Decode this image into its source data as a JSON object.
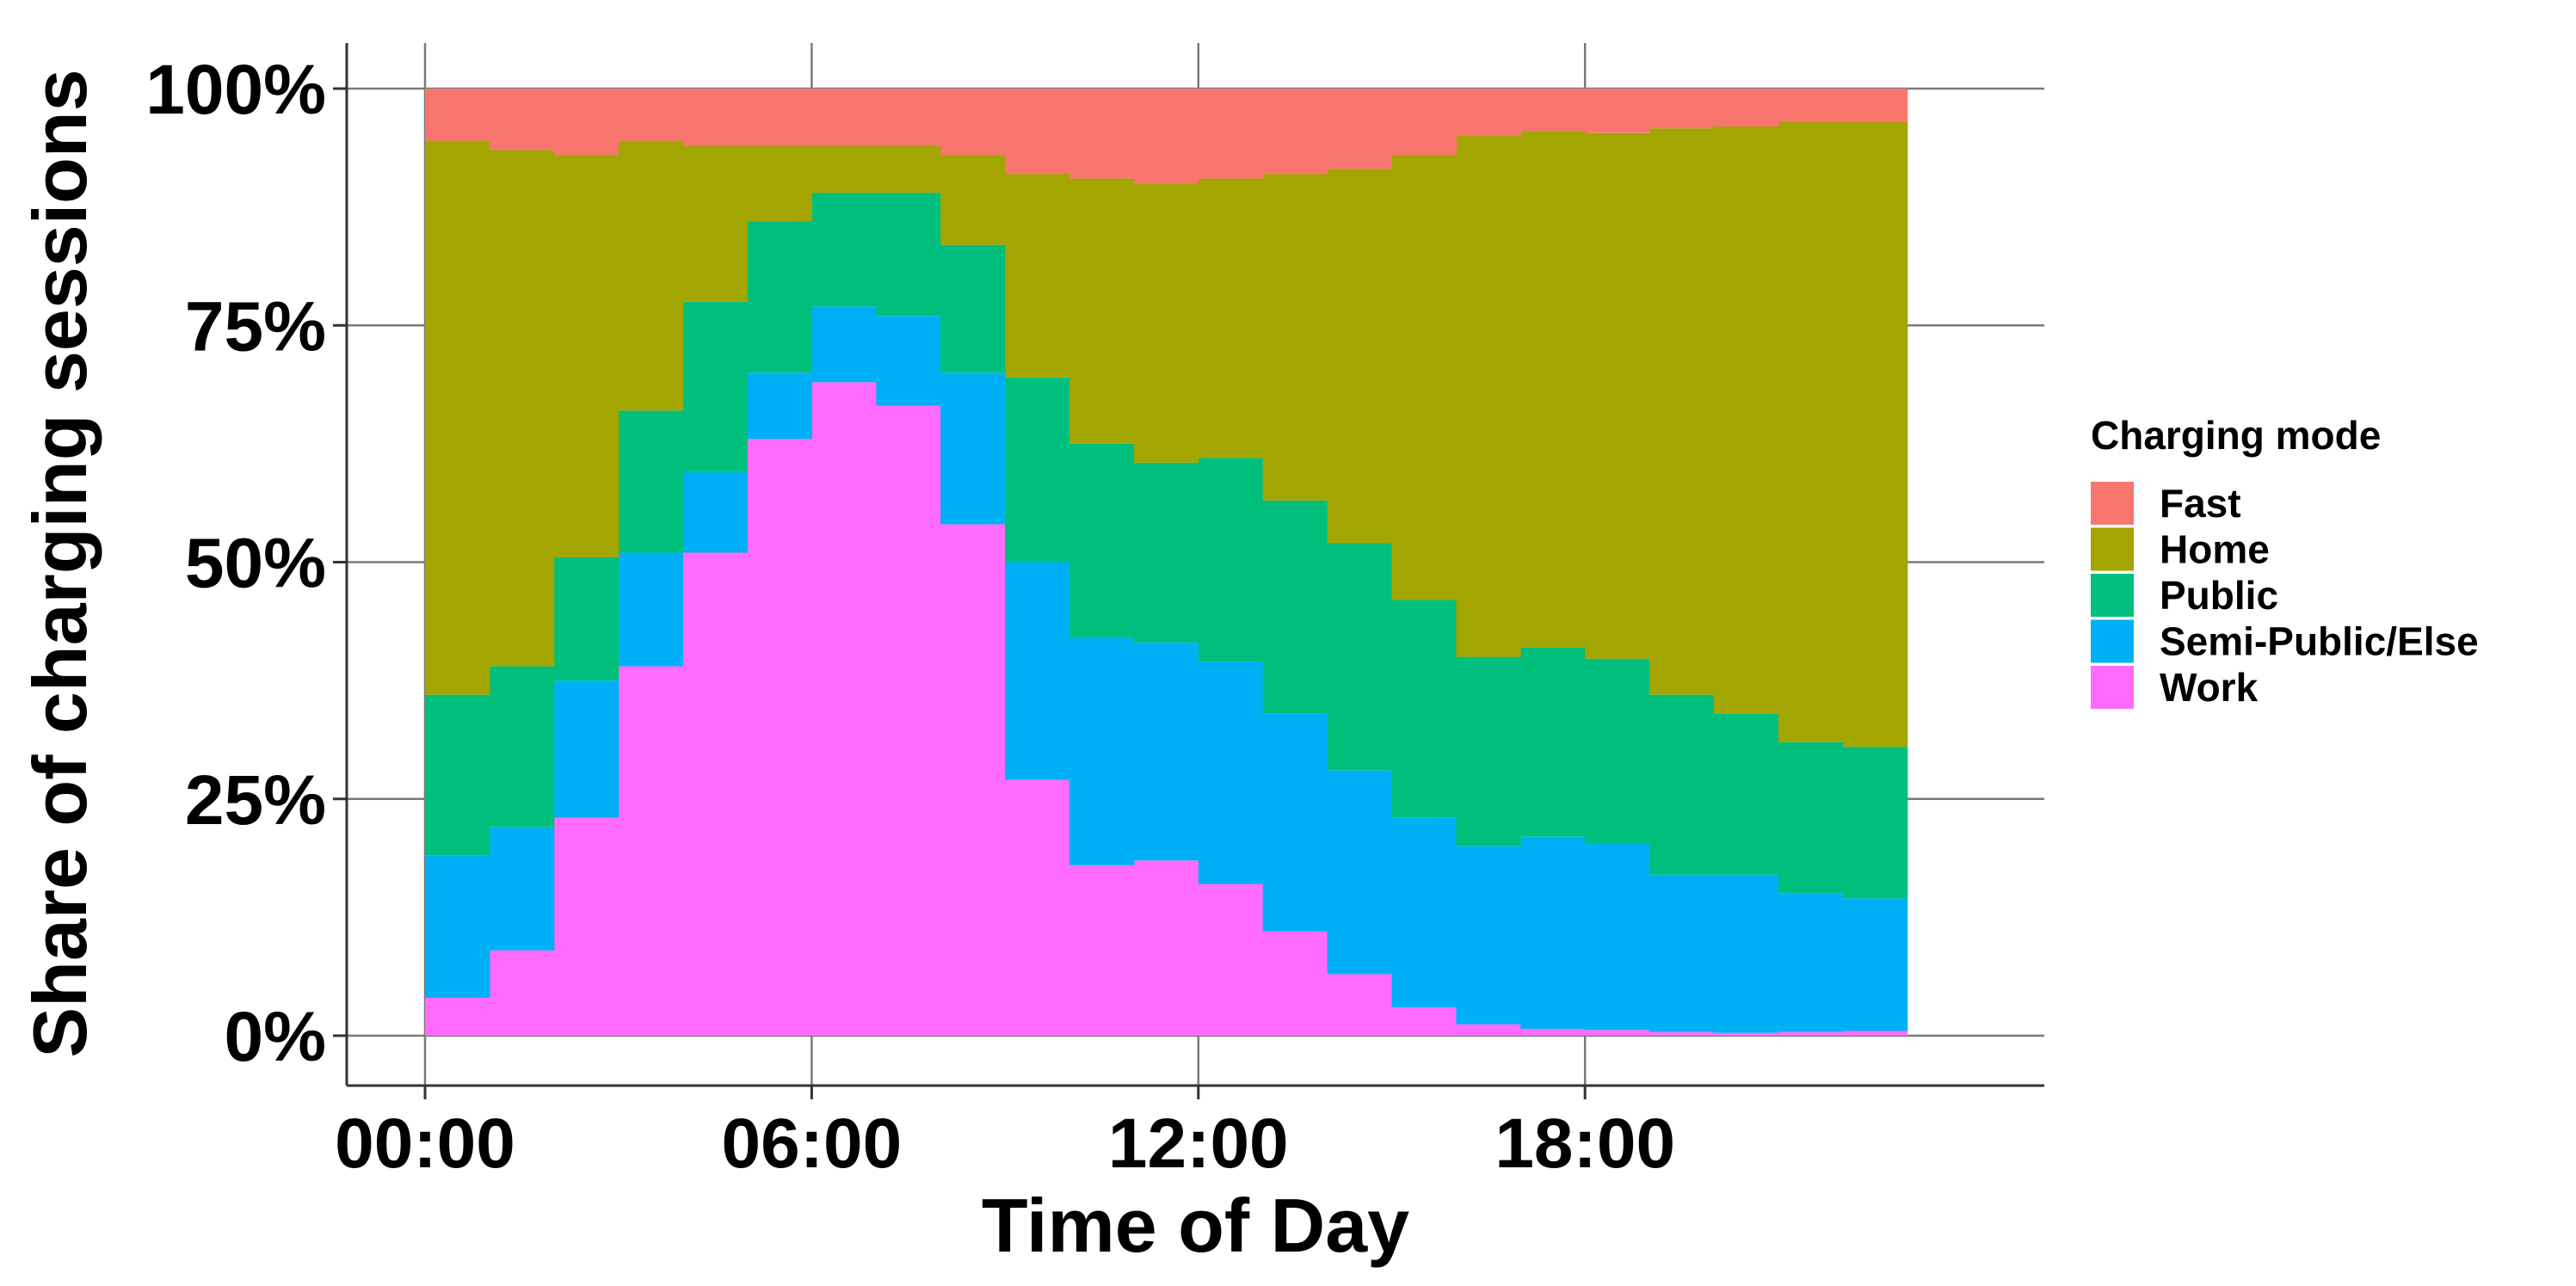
{
  "chart_data": {
    "type": "area",
    "stacked": true,
    "normalized": true,
    "step": true,
    "xlabel": "Time of Day",
    "ylabel": "Share of charging sessions",
    "x_ticks": [
      "00:00",
      "06:00",
      "12:00",
      "18:00"
    ],
    "y_ticks": [
      "0%",
      "25%",
      "50%",
      "75%",
      "100%"
    ],
    "ylim": [
      0,
      1
    ],
    "grid": true,
    "legend_position": "right",
    "legend_title": "Charging mode",
    "x": [
      "00:30",
      "01:30",
      "02:30",
      "03:30",
      "04:30",
      "05:30",
      "06:30",
      "07:30",
      "08:30",
      "09:30",
      "10:30",
      "11:30",
      "12:30",
      "13:30",
      "14:30",
      "15:30",
      "16:30",
      "17:30",
      "18:30",
      "19:30",
      "20:30",
      "21:30",
      "22:30"
    ],
    "series": [
      {
        "name": "Work",
        "color": "#FF6BFF",
        "values": [
          0.04,
          0.09,
          0.23,
          0.39,
          0.51,
          0.63,
          0.69,
          0.665,
          0.54,
          0.27,
          0.18,
          0.185,
          0.16,
          0.11,
          0.065,
          0.03,
          0.012,
          0.007,
          0.006,
          0.004,
          0.003,
          0.004,
          0.005
        ]
      },
      {
        "name": "Semi-Public/Else",
        "color": "#00B0F6",
        "values": [
          0.15,
          0.13,
          0.145,
          0.12,
          0.085,
          0.07,
          0.08,
          0.095,
          0.16,
          0.23,
          0.24,
          0.23,
          0.235,
          0.23,
          0.215,
          0.2,
          0.188,
          0.203,
          0.197,
          0.166,
          0.167,
          0.146,
          0.14
        ]
      },
      {
        "name": "Public",
        "color": "#00BF7D",
        "values": [
          0.17,
          0.17,
          0.13,
          0.15,
          0.18,
          0.16,
          0.12,
          0.13,
          0.135,
          0.195,
          0.205,
          0.19,
          0.215,
          0.225,
          0.24,
          0.23,
          0.2,
          0.2,
          0.195,
          0.19,
          0.17,
          0.16,
          0.16
        ]
      },
      {
        "name": "Home",
        "color": "#A3A500",
        "values": [
          0.585,
          0.545,
          0.425,
          0.285,
          0.165,
          0.08,
          0.05,
          0.05,
          0.095,
          0.215,
          0.28,
          0.295,
          0.295,
          0.345,
          0.395,
          0.47,
          0.55,
          0.545,
          0.555,
          0.598,
          0.62,
          0.655,
          0.66
        ]
      },
      {
        "name": "Fast",
        "color": "#F8766D",
        "values": [
          0.055,
          0.065,
          0.07,
          0.055,
          0.06,
          0.06,
          0.06,
          0.06,
          0.07,
          0.09,
          0.095,
          0.1,
          0.095,
          0.09,
          0.085,
          0.07,
          0.05,
          0.045,
          0.047,
          0.042,
          0.04,
          0.035,
          0.035
        ]
      }
    ],
    "legend_order": [
      "Fast",
      "Home",
      "Public",
      "Semi-Public/Else",
      "Work"
    ]
  }
}
